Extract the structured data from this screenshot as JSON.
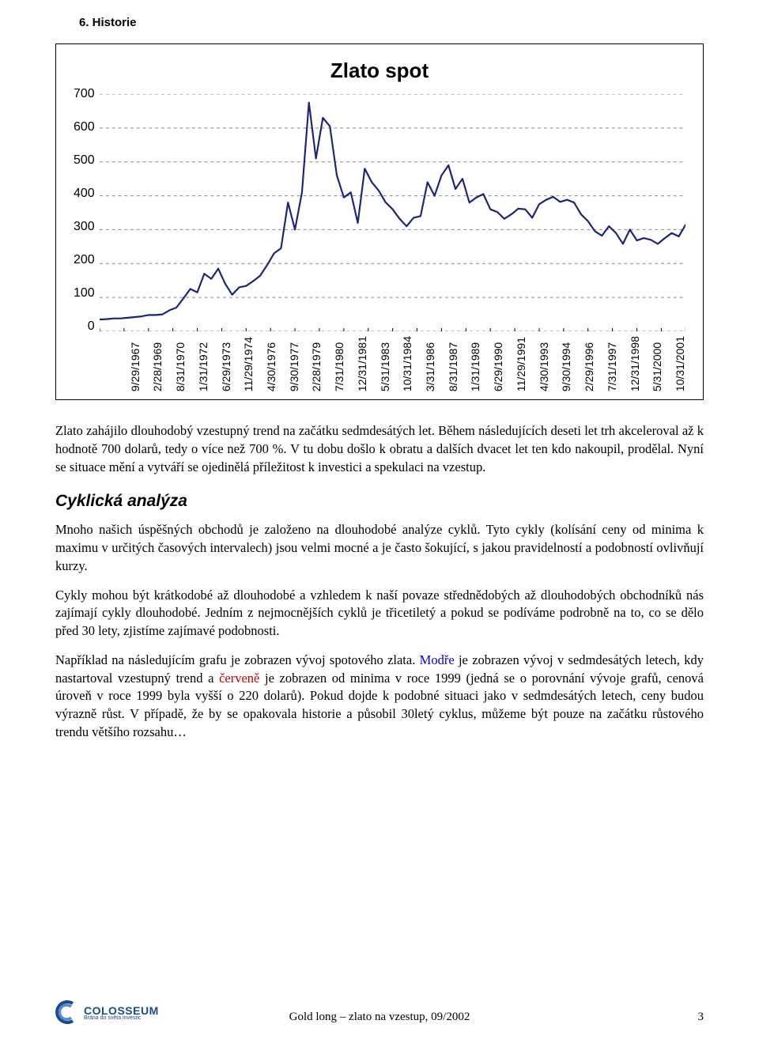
{
  "heading": "6.  Historie",
  "chart": {
    "type": "line",
    "title": "Zlato spot",
    "y_ticks": [
      700,
      600,
      500,
      400,
      300,
      200,
      100,
      0
    ],
    "ylim": [
      0,
      700
    ],
    "x_labels": [
      "9/29/1967",
      "2/28/1969",
      "8/31/1970",
      "1/31/1972",
      "6/29/1973",
      "11/29/1974",
      "4/30/1976",
      "9/30/1977",
      "2/28/1979",
      "7/31/1980",
      "12/31/1981",
      "5/31/1983",
      "10/31/1984",
      "3/31/1986",
      "8/31/1987",
      "1/31/1989",
      "6/29/1990",
      "11/29/1991",
      "4/30/1993",
      "9/30/1994",
      "2/29/1996",
      "7/31/1997",
      "12/31/1998",
      "5/31/2000",
      "10/31/2001"
    ],
    "series": [
      {
        "name": "gold_spot",
        "color": "#1a237e",
        "width": 2.2,
        "points": [
          {
            "x": 0,
            "y": 35
          },
          {
            "x": 1,
            "y": 36
          },
          {
            "x": 2,
            "y": 38
          },
          {
            "x": 3,
            "y": 38
          },
          {
            "x": 4,
            "y": 40
          },
          {
            "x": 5,
            "y": 42
          },
          {
            "x": 6,
            "y": 44
          },
          {
            "x": 7,
            "y": 48
          },
          {
            "x": 8,
            "y": 48
          },
          {
            "x": 9,
            "y": 50
          },
          {
            "x": 10,
            "y": 62
          },
          {
            "x": 11,
            "y": 70
          },
          {
            "x": 12,
            "y": 97
          },
          {
            "x": 13,
            "y": 125
          },
          {
            "x": 14,
            "y": 115
          },
          {
            "x": 15,
            "y": 170
          },
          {
            "x": 16,
            "y": 155
          },
          {
            "x": 17,
            "y": 185
          },
          {
            "x": 18,
            "y": 140
          },
          {
            "x": 19,
            "y": 108
          },
          {
            "x": 20,
            "y": 130
          },
          {
            "x": 21,
            "y": 134
          },
          {
            "x": 22,
            "y": 148
          },
          {
            "x": 23,
            "y": 164
          },
          {
            "x": 24,
            "y": 195
          },
          {
            "x": 25,
            "y": 230
          },
          {
            "x": 26,
            "y": 245
          },
          {
            "x": 27,
            "y": 380
          },
          {
            "x": 28,
            "y": 300
          },
          {
            "x": 29,
            "y": 410
          },
          {
            "x": 30,
            "y": 675
          },
          {
            "x": 31,
            "y": 510
          },
          {
            "x": 32,
            "y": 630
          },
          {
            "x": 33,
            "y": 605
          },
          {
            "x": 34,
            "y": 460
          },
          {
            "x": 35,
            "y": 395
          },
          {
            "x": 36,
            "y": 410
          },
          {
            "x": 37,
            "y": 320
          },
          {
            "x": 38,
            "y": 480
          },
          {
            "x": 39,
            "y": 440
          },
          {
            "x": 40,
            "y": 415
          },
          {
            "x": 41,
            "y": 380
          },
          {
            "x": 42,
            "y": 360
          },
          {
            "x": 43,
            "y": 332
          },
          {
            "x": 44,
            "y": 310
          },
          {
            "x": 45,
            "y": 335
          },
          {
            "x": 46,
            "y": 340
          },
          {
            "x": 47,
            "y": 440
          },
          {
            "x": 48,
            "y": 400
          },
          {
            "x": 49,
            "y": 460
          },
          {
            "x": 50,
            "y": 490
          },
          {
            "x": 51,
            "y": 420
          },
          {
            "x": 52,
            "y": 450
          },
          {
            "x": 53,
            "y": 380
          },
          {
            "x": 54,
            "y": 395
          },
          {
            "x": 55,
            "y": 405
          },
          {
            "x": 56,
            "y": 360
          },
          {
            "x": 57,
            "y": 352
          },
          {
            "x": 58,
            "y": 332
          },
          {
            "x": 59,
            "y": 345
          },
          {
            "x": 60,
            "y": 362
          },
          {
            "x": 61,
            "y": 360
          },
          {
            "x": 62,
            "y": 335
          },
          {
            "x": 63,
            "y": 375
          },
          {
            "x": 64,
            "y": 388
          },
          {
            "x": 65,
            "y": 397
          },
          {
            "x": 66,
            "y": 382
          },
          {
            "x": 67,
            "y": 388
          },
          {
            "x": 68,
            "y": 380
          },
          {
            "x": 69,
            "y": 345
          },
          {
            "x": 70,
            "y": 325
          },
          {
            "x": 71,
            "y": 295
          },
          {
            "x": 72,
            "y": 282
          },
          {
            "x": 73,
            "y": 310
          },
          {
            "x": 74,
            "y": 290
          },
          {
            "x": 75,
            "y": 258
          },
          {
            "x": 76,
            "y": 300
          },
          {
            "x": 77,
            "y": 268
          },
          {
            "x": 78,
            "y": 275
          },
          {
            "x": 79,
            "y": 270
          },
          {
            "x": 80,
            "y": 258
          },
          {
            "x": 81,
            "y": 275
          },
          {
            "x": 82,
            "y": 290
          },
          {
            "x": 83,
            "y": 280
          },
          {
            "x": 84,
            "y": 315
          }
        ]
      }
    ],
    "grid_color": "#888888",
    "grid_dash": "4,4",
    "background": "#ffffff",
    "font_family": "Arial",
    "title_fontsize": 26,
    "axis_fontsize": 15
  },
  "paragraphs": {
    "p1": "Zlato zahájilo dlouhodobý vzestupný trend na začátku sedmdesátých let. Během následujících deseti let trh akceleroval až k hodnotě 700 dolarů, tedy o více než 700 %. V tu dobu došlo k obratu a dalších dvacet let ten kdo nakoupil, prodělal. Nyní se situace mění a vytváří se ojedinělá příležitost k investici a spekulaci na vzestup.",
    "h2": "Cyklická analýza",
    "p2": "Mnoho našich úspěšných obchodů je založeno na dlouhodobé analýze cyklů. Tyto cykly (kolísání ceny od minima k maximu v určitých časových intervalech) jsou velmi mocné a je často šokující, s jakou pravidelností a podobností ovlivňují kurzy.",
    "p3": "Cykly mohou být krátkodobé až dlouhodobé a vzhledem k naší povaze střednědobých až dlouhodobých obchodníků nás zajímají cykly dlouhodobé. Jedním z nejmocnějších cyklů je třicetiletý a pokud se podíváme podrobně na to, co se dělo před 30 lety, zjistíme zajímavé podobnosti.",
    "p4a": "Například na následujícím grafu je zobrazen vývoj spotového zlata. ",
    "p4_blue": "Modře",
    "p4b": " je zobrazen vývoj v sedmdesátých letech, kdy nastartoval vzestupný trend a ",
    "p4_red": "červeně",
    "p4c": " je zobrazen od minima v roce 1999 (jedná se o porovnání vývoje grafů, cenová úroveň v roce 1999 byla vyšší o 220 dolarů). Pokud dojde k podobné situaci jako v sedmdesátých letech, ceny budou výrazně růst. V případě, že by se opakovala historie a působil 30letý cyklus, můžeme být pouze na začátku růstového trendu většího rozsahu…"
  },
  "footer": {
    "logo_brand": "COLOSSEUM",
    "logo_sub": "Brána do světa investic",
    "center": "Gold long – zlato na vzestup, 09/2002",
    "page": "3"
  },
  "colors": {
    "text": "#000000",
    "blue_word": "#0000d0",
    "red_word": "#c00000",
    "logo": "#1a4b8c"
  }
}
